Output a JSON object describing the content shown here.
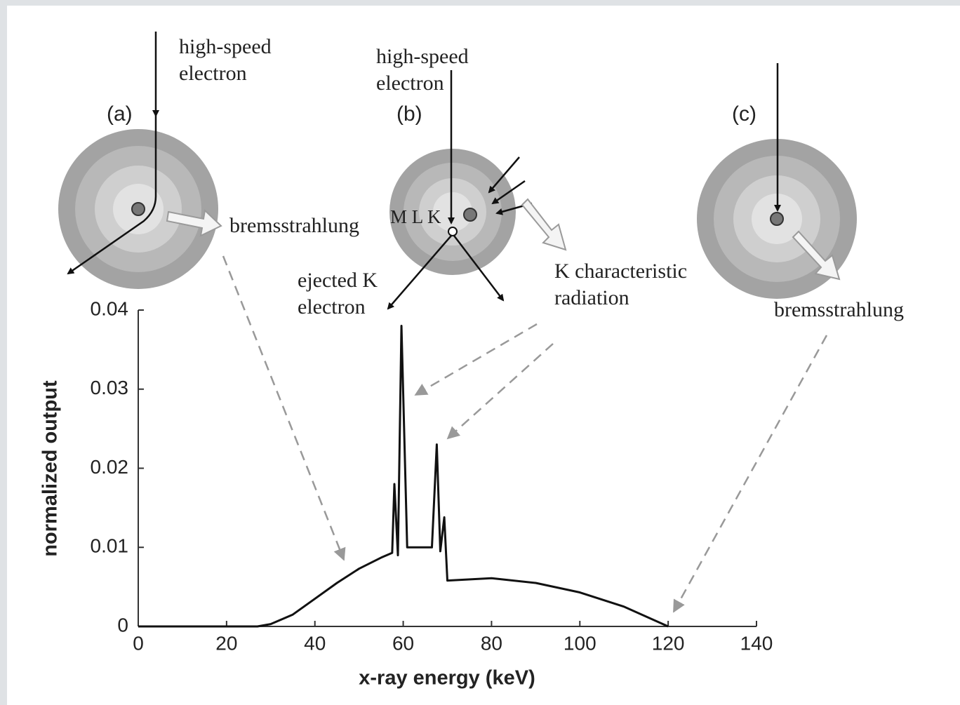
{
  "chart_data": {
    "type": "line",
    "x_label": "x-ray energy (keV)",
    "y_label": "normalized output",
    "x": [
      0,
      27,
      30,
      35,
      40,
      45,
      50,
      55,
      57.5,
      58,
      58.8,
      59.6,
      60.9,
      66.5,
      67.6,
      68.4,
      69.3,
      70,
      80,
      90,
      100,
      110,
      120
    ],
    "values": [
      0,
      0,
      0.0003,
      0.0015,
      0.0035,
      0.0055,
      0.0073,
      0.0087,
      0.0093,
      0.018,
      0.009,
      0.038,
      0.01,
      0.01,
      0.023,
      0.0095,
      0.0138,
      0.0058,
      0.0061,
      0.0055,
      0.0043,
      0.0025,
      0
    ],
    "color": "#111111",
    "xlim": [
      0,
      140
    ],
    "ylim": [
      0,
      0.04
    ],
    "xticks": [
      0,
      20,
      40,
      60,
      80,
      100,
      120,
      140
    ],
    "yticks": [
      0,
      0.01,
      0.02,
      0.03,
      0.04
    ],
    "grid": false,
    "annotations": [
      "(a)",
      "high-speed electron",
      "bremsstrahlung",
      "(b)",
      "high-speed electron",
      "M L K",
      "ejected K electron",
      "K characteristic radiation",
      "(c)",
      "bremsstrahlung"
    ]
  }
}
